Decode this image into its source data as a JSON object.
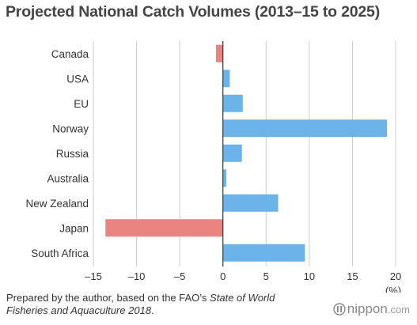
{
  "chart_data": {
    "type": "bar",
    "orientation": "horizontal",
    "title": "Projected National Catch Volumes (2013–15 to 2025)",
    "categories": [
      "Canada",
      "USA",
      "EU",
      "Norway",
      "Russia",
      "Australia",
      "New Zealand",
      "Japan",
      "South Africa"
    ],
    "values": [
      -0.8,
      0.8,
      2.3,
      19.0,
      2.2,
      0.4,
      6.4,
      -13.6,
      9.5
    ],
    "xlim": [
      -15,
      20
    ],
    "xticks": [
      -15,
      -10,
      -5,
      0,
      5,
      10,
      15,
      20
    ],
    "xtick_labels": [
      "–15",
      "–10",
      "–5",
      "0",
      "5",
      "10",
      "15",
      "20"
    ],
    "x_unit": "(%)",
    "grid": true,
    "colors": {
      "positive": "#6bb4ea",
      "negative": "#e98481",
      "grid": "#cccccc",
      "zero_line": "#333333"
    }
  },
  "footnote": {
    "prefix": "Prepared by the author, based on the FAO’s ",
    "source_title_line1": "State of World",
    "source_title_line2": "Fisheries and Aquaculture 2018",
    "suffix": "."
  },
  "logo": {
    "icon": "nippon-logo-icon",
    "name": "nippon",
    "suffix": ".com"
  }
}
